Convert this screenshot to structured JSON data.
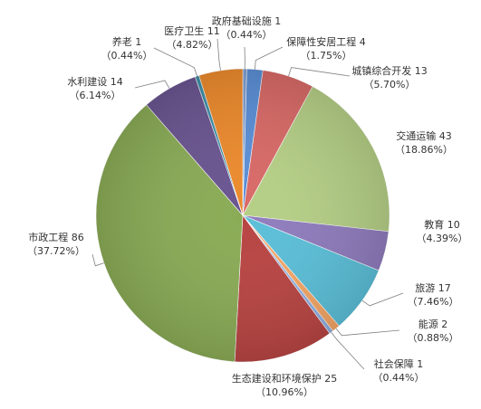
{
  "chart_data": {
    "type": "pie",
    "title": "",
    "slices": [
      {
        "name": "政府基础设施",
        "value": 1,
        "percent": "0.44%",
        "color": "#7f9fd1"
      },
      {
        "name": "保障性安居工程",
        "value": 4,
        "percent": "1.75%",
        "color": "#5b8fd6"
      },
      {
        "name": "城镇综合开发",
        "value": 13,
        "percent": "5.70%",
        "color": "#d86a67"
      },
      {
        "name": "交通运输",
        "value": 43,
        "percent": "18.86%",
        "color": "#b5cf86"
      },
      {
        "name": "教育",
        "value": 10,
        "percent": "4.39%",
        "color": "#8f7cbd"
      },
      {
        "name": "旅游",
        "value": 17,
        "percent": "7.46%",
        "color": "#5bbfd8"
      },
      {
        "name": "能源",
        "value": 2,
        "percent": "0.88%",
        "color": "#f4a666"
      },
      {
        "name": "社会保障",
        "value": 1,
        "percent": "0.44%",
        "color": "#8eaee0"
      },
      {
        "name": "生态建设和环境保护",
        "value": 25,
        "percent": "10.96%",
        "color": "#b84543"
      },
      {
        "name": "市政工程",
        "value": 86,
        "percent": "37.72%",
        "color": "#8aab56"
      },
      {
        "name": "水利建设",
        "value": 14,
        "percent": "6.14%",
        "color": "#6a5590"
      },
      {
        "name": "养老",
        "value": 1,
        "percent": "0.44%",
        "color": "#3f8fa8"
      },
      {
        "name": "医疗卫生",
        "value": 11,
        "percent": "4.82%",
        "color": "#ec8a2d"
      }
    ]
  }
}
